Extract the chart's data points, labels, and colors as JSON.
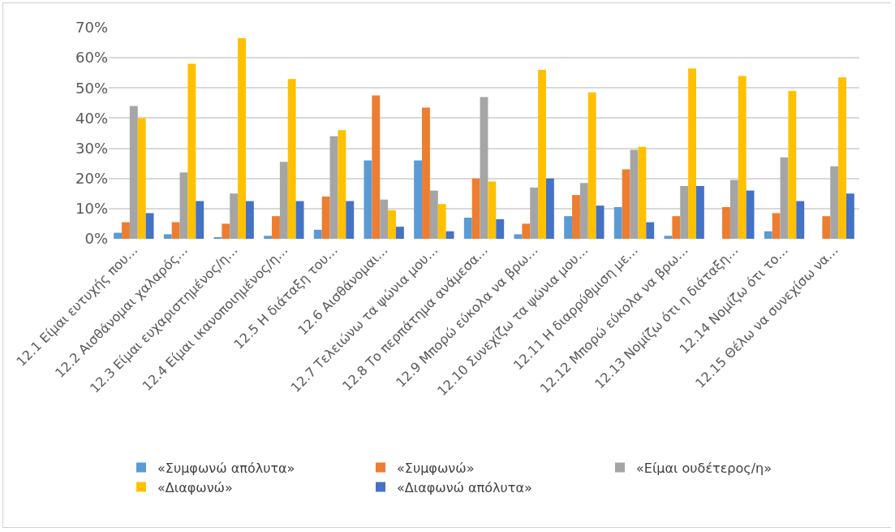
{
  "chart_data": {
    "type": "bar",
    "categories": [
      "12.1 Είμαι ευτυχής που…",
      "12.2 Αισθάνομαι χαλαρός…",
      "12.3 Είμαι ευχαριστημένος/η…",
      "12.4 Είμαι ικανοποιημένος/η…",
      "12.5 Η διάταξη του…",
      "12.6 Αισθάνομαι…",
      "12.7 Τελειώνω τα ψώνια μου…",
      "12.8 Το περπάτημα ανάμεσα…",
      "12.9 Μπορώ εύκολα να βρω…",
      "12.10 Συνεχίζω τα ψώνια μου…",
      "12.11 Η διαρρύθμιση με…",
      "12.12 Μπορώ εύκολα να βρω…",
      "12.13 Νομίζω ότι η διάταξη…",
      "12.14 Νομίζω ότι το…",
      "12.15 Θέλω να συνεχίσω να…"
    ],
    "series": [
      {
        "name": "«Συμφωνώ απόλυτα»",
        "color": "#5b9bd5",
        "values": [
          2,
          1.5,
          0.5,
          1,
          3,
          26,
          26,
          7,
          1.5,
          7.5,
          10.5,
          1,
          0,
          2.5,
          0
        ]
      },
      {
        "name": "«Συμφωνώ»",
        "color": "#ed7d31",
        "values": [
          5.5,
          5.5,
          5,
          7.5,
          14,
          47.5,
          43.5,
          20,
          5,
          14.5,
          23,
          7.5,
          10.5,
          8.5,
          7.5
        ]
      },
      {
        "name": "«Είμαι ουδέτερος/η»",
        "color": "#a5a5a5",
        "values": [
          44,
          22,
          15,
          25.5,
          34,
          13,
          16,
          47,
          17,
          18.5,
          29.5,
          17.5,
          19.5,
          27,
          24
        ]
      },
      {
        "name": "«Διαφωνώ»",
        "color": "#ffc000",
        "values": [
          40,
          58,
          66.5,
          53,
          36,
          9.5,
          11.5,
          19,
          56,
          48.5,
          30.5,
          56.5,
          54,
          49,
          53.5
        ]
      },
      {
        "name": "«Διαφωνώ απόλυτα»",
        "color": "#4472c4",
        "values": [
          8.5,
          12.5,
          12.5,
          12.5,
          12.5,
          4,
          2.5,
          6.5,
          20,
          11,
          5.5,
          17.5,
          16,
          12.5,
          15
        ]
      }
    ],
    "ylim": [
      0,
      70
    ],
    "yticks": [
      {
        "value": 0,
        "label": "0%"
      },
      {
        "value": 10,
        "label": "10%"
      },
      {
        "value": 20,
        "label": "20%"
      },
      {
        "value": 30,
        "label": "30%"
      },
      {
        "value": 40,
        "label": "40%"
      },
      {
        "value": 50,
        "label": "50%"
      },
      {
        "value": 60,
        "label": "60%"
      },
      {
        "value": 70,
        "label": "70%"
      }
    ],
    "grid": "y",
    "legend": "bottom"
  }
}
